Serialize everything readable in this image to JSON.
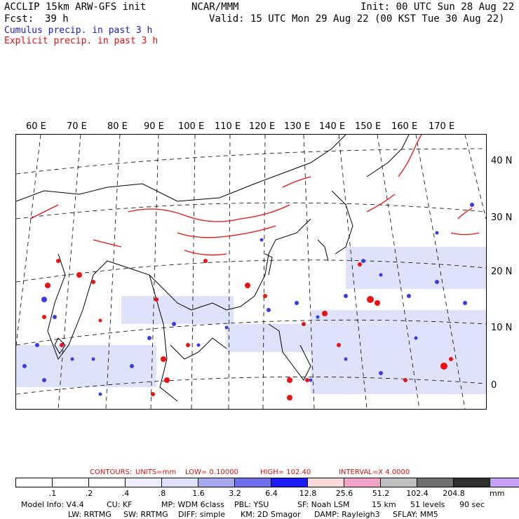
{
  "header": {
    "model_line": "ACCLIP 15km ARW-GFS init",
    "fcst_label": "Fcst:",
    "fcst_value": "39 h",
    "center": "NCAR/MMM",
    "init": "Init: 00 UTC Sun 28 Aug 22",
    "valid": "Valid: 15 UTC Mon 29 Aug 22 (00 KST Tue 30 Aug 22)"
  },
  "legend": {
    "cumulus": "Cumulus precip. in past 3 h",
    "explicit": "Explicit precip. in past 3 h"
  },
  "map": {
    "longitude_labels": [
      "60 E",
      "70 E",
      "80 E",
      "90 E",
      "100 E",
      "110 E",
      "120 E",
      "130 E",
      "140 E",
      "150 E",
      "160 E",
      "170 E"
    ],
    "latitude_labels": [
      "40 N",
      "30 N",
      "20 N",
      "10 N",
      "0"
    ],
    "colors": {
      "coastline": "#000000",
      "explicit_precip": "#ee1111",
      "cumulus_precip": "#3a3ae6",
      "light_cumulus": "#b8c4f4",
      "grid": "#000000"
    }
  },
  "contours": {
    "label": "CONTOURS:",
    "units": "UNITS=mm",
    "low": "LOW=  0.10000",
    "high": "HIGH=   102.40",
    "interval": "INTERVAL=X   4.0000"
  },
  "colorbar": {
    "unit": "mm",
    "colors": [
      "#ffffff",
      "#ffffff",
      "#ffffff",
      "#f0f0ff",
      "#dce0fa",
      "#a8a8f0",
      "#7070ec",
      "#1c1cf4",
      "#f8d8d8",
      "#f4a4c8",
      "#c0c0c0",
      "#707070",
      "#303030",
      "#c8a0f8"
    ],
    "labels": [
      ".1",
      ".2",
      ".4",
      ".8",
      "1.6",
      "3.2",
      "6.4",
      "12.8",
      "25.6",
      "51.2",
      "102.4",
      "204.8"
    ]
  },
  "footer": {
    "line1": [
      "Model Info: V4.4",
      "CU: KF",
      "MP: WDM 6class",
      "PBL: YSU",
      "SF: Noah LSM",
      "15 km",
      "51 levels",
      "90 sec"
    ],
    "line2": [
      "LW: RRTMG",
      "SW: RRTMG",
      "DIFF: simple",
      "KM: 2D Smagor",
      "DAMP: Rayleigh3",
      "SFLAY: MM5"
    ]
  }
}
